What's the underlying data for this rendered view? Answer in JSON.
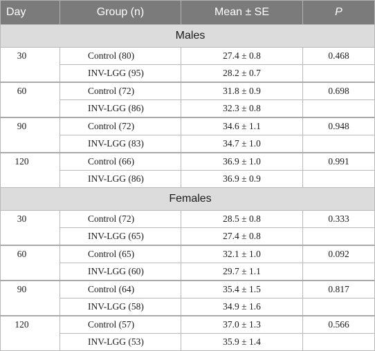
{
  "headers": {
    "day": "Day",
    "group": "Group (n)",
    "mean": "Mean ± SE",
    "p": "P"
  },
  "sections": [
    {
      "title": "Males",
      "groups": [
        {
          "day": "30",
          "p": "0.468",
          "rows": [
            {
              "group": "Control (80)",
              "mean": "27.4 ± 0.8"
            },
            {
              "group": "INV-LGG (95)",
              "mean": "28.2 ± 0.7"
            }
          ]
        },
        {
          "day": "60",
          "p": "0.698",
          "rows": [
            {
              "group": "Control (72)",
              "mean": "31.8 ± 0.9"
            },
            {
              "group": "INV-LGG (86)",
              "mean": "32.3 ± 0.8"
            }
          ]
        },
        {
          "day": "90",
          "p": "0.948",
          "rows": [
            {
              "group": "Control (72)",
              "mean": "34.6 ± 1.1"
            },
            {
              "group": "INV-LGG (83)",
              "mean": "34.7 ± 1.0"
            }
          ]
        },
        {
          "day": "120",
          "p": "0.991",
          "rows": [
            {
              "group": "Control (66)",
              "mean": "36.9 ± 1.0"
            },
            {
              "group": "INV-LGG (86)",
              "mean": "36.9 ± 0.9"
            }
          ]
        }
      ]
    },
    {
      "title": "Females",
      "groups": [
        {
          "day": "30",
          "p": "0.333",
          "rows": [
            {
              "group": "Control (72)",
              "mean": "28.5 ± 0.8"
            },
            {
              "group": "INV-LGG (65)",
              "mean": "27.4 ± 0.8"
            }
          ]
        },
        {
          "day": "60",
          "p": "0.092",
          "rows": [
            {
              "group": "Control (65)",
              "mean": "32.1 ± 1.0"
            },
            {
              "group": "INV-LGG (60)",
              "mean": "29.7 ± 1.1"
            }
          ]
        },
        {
          "day": "90",
          "p": "0.817",
          "rows": [
            {
              "group": "Control (64)",
              "mean": "35.4 ± 1.5"
            },
            {
              "group": "INV-LGG (58)",
              "mean": "34.9 ± 1.6"
            }
          ]
        },
        {
          "day": "120",
          "p": "0.566",
          "rows": [
            {
              "group": "Control (57)",
              "mean": "37.0 ± 1.3"
            },
            {
              "group": "INV-LGG (53)",
              "mean": "35.9 ± 1.4"
            }
          ]
        }
      ]
    }
  ]
}
